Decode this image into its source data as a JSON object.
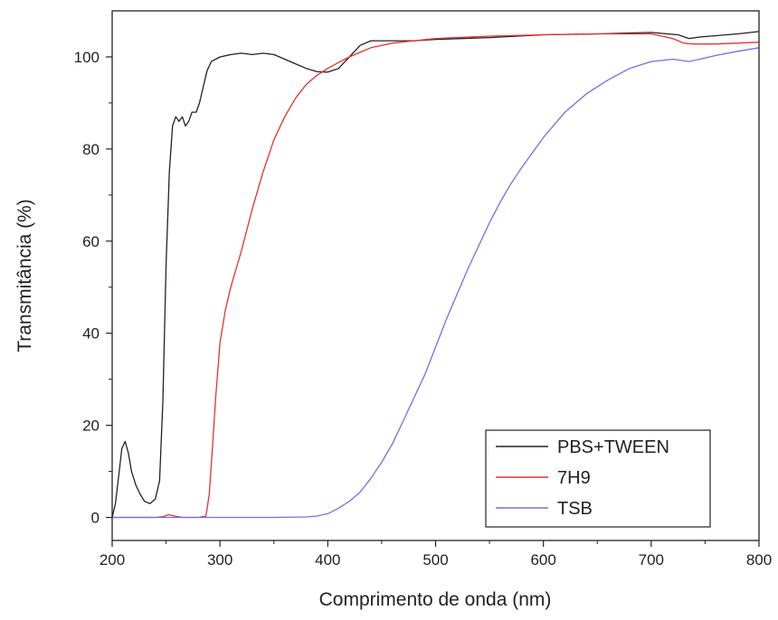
{
  "chart_data": {
    "type": "line",
    "xlabel": "Comprimento de onda (nm)",
    "ylabel": "Transmitância (%)",
    "xlim": [
      200,
      800
    ],
    "ylim": [
      -5,
      110
    ],
    "xticks": [
      200,
      300,
      400,
      500,
      600,
      700,
      800
    ],
    "yticks": [
      0,
      20,
      40,
      60,
      80,
      100
    ],
    "grid": false,
    "legend_position": "bottom-right",
    "series": [
      {
        "name": "PBS+TWEEN",
        "color": "#222222",
        "x": [
          200,
          203,
          206,
          209,
          212,
          215,
          218,
          222,
          226,
          230,
          235,
          240,
          244,
          247,
          250,
          253,
          256,
          259,
          262,
          265,
          268,
          271,
          274,
          278,
          281,
          285,
          288,
          292,
          296,
          300,
          310,
          320,
          330,
          340,
          350,
          360,
          370,
          380,
          390,
          400,
          410,
          420,
          430,
          440,
          460,
          480,
          500,
          550,
          600,
          650,
          700,
          715,
          725,
          735,
          745,
          760,
          780,
          800
        ],
        "y": [
          0,
          3,
          9,
          15,
          16.5,
          14,
          10,
          7,
          5,
          3.5,
          3,
          4,
          8,
          25,
          55,
          75,
          85,
          87,
          86,
          87,
          85,
          86,
          88,
          88,
          90,
          94,
          97,
          99,
          99.5,
          100,
          100.5,
          100.8,
          100.5,
          100.8,
          100.5,
          99.5,
          98.5,
          97.5,
          96.8,
          96.7,
          97.5,
          100,
          102.5,
          103.5,
          103.5,
          103.5,
          103.8,
          104.2,
          104.8,
          105,
          105.3,
          105,
          104.8,
          104,
          104.3,
          104.6,
          105,
          105.5
        ]
      },
      {
        "name": "7H9",
        "color": "#e83030",
        "x": [
          200,
          240,
          248,
          252,
          258,
          265,
          280,
          287,
          290,
          293,
          296,
          300,
          305,
          310,
          320,
          330,
          340,
          350,
          360,
          370,
          380,
          390,
          400,
          410,
          420,
          430,
          440,
          460,
          480,
          500,
          550,
          600,
          650,
          700,
          720,
          730,
          740,
          760,
          780,
          800
        ],
        "y": [
          0,
          0,
          0.2,
          0.6,
          0.3,
          0,
          0,
          0.3,
          5,
          15,
          26,
          38,
          45,
          50,
          58,
          67,
          75,
          82,
          87,
          91,
          94,
          96,
          97.5,
          98.8,
          100,
          101,
          102,
          103,
          103.5,
          104,
          104.5,
          104.8,
          105,
          105,
          104,
          103,
          102.8,
          102.8,
          103,
          103.2
        ]
      },
      {
        "name": "TSB",
        "color": "#6f6ff0",
        "x": [
          200,
          350,
          380,
          390,
          400,
          410,
          420,
          430,
          440,
          450,
          460,
          470,
          480,
          490,
          500,
          510,
          520,
          530,
          540,
          550,
          560,
          570,
          580,
          600,
          620,
          640,
          660,
          680,
          700,
          720,
          735,
          745,
          760,
          780,
          800
        ],
        "y": [
          0,
          0,
          0.1,
          0.3,
          0.8,
          2,
          3.5,
          5.5,
          8.5,
          12,
          16,
          21,
          26,
          31,
          37,
          43,
          48.5,
          54,
          59,
          64,
          68.5,
          72.5,
          76,
          82.5,
          88,
          92,
          95,
          97.5,
          99,
          99.5,
          99,
          99.5,
          100.3,
          101.2,
          102
        ]
      }
    ]
  }
}
